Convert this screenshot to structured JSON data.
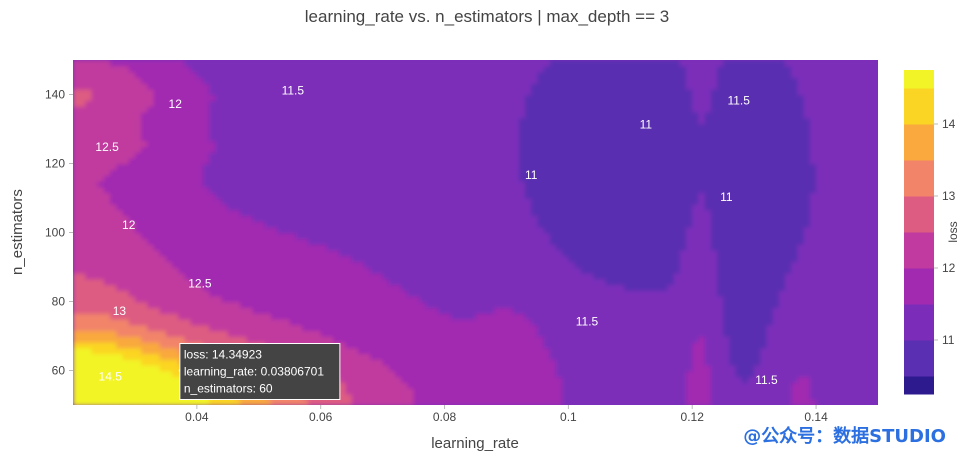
{
  "watermark": "@公众号：数据STUDIO",
  "chart_data": {
    "type": "contour",
    "title": "learning_rate vs. n_estimators | max_depth == 3",
    "xlabel": "learning_rate",
    "ylabel": "n_estimators",
    "colorbar_label": "loss",
    "xlim": [
      0.02,
      0.15
    ],
    "ylim": [
      50,
      150
    ],
    "x_ticks": [
      0.04,
      0.06,
      0.08,
      0.1,
      0.12,
      0.14
    ],
    "x_tick_labels": [
      "0.04",
      "0.06",
      "0.08",
      "0.1",
      "0.12",
      "0.14"
    ],
    "y_ticks": [
      60,
      80,
      100,
      120,
      140
    ],
    "y_tick_labels": [
      "60",
      "80",
      "100",
      "120",
      "140"
    ],
    "colorbar_range": [
      10.25,
      14.75
    ],
    "colorbar_ticks": [
      11,
      12,
      13,
      14
    ],
    "colorbar_tick_labels": [
      "11",
      "12",
      "13",
      "14"
    ],
    "contour_levels": [
      10.5,
      11,
      11.5,
      12,
      12.5,
      13,
      13.5,
      14,
      14.5
    ],
    "level_colors": [
      "#2d1a8e",
      "#5a2fb1",
      "#7b2db9",
      "#a12ab1",
      "#c13a9f",
      "#dd5c82",
      "#f2846a",
      "#f9a93e",
      "#fbd524",
      "#f2f428"
    ],
    "contour_labels": [
      {
        "text": "11.5",
        "x": 0.0555,
        "y": 141
      },
      {
        "text": "12",
        "x": 0.0365,
        "y": 137
      },
      {
        "text": "12.5",
        "x": 0.0255,
        "y": 124.5
      },
      {
        "text": "12",
        "x": 0.029,
        "y": 102
      },
      {
        "text": "12.5",
        "x": 0.0405,
        "y": 85
      },
      {
        "text": "13",
        "x": 0.0275,
        "y": 77
      },
      {
        "text": "14.5",
        "x": 0.026,
        "y": 58
      },
      {
        "text": "11",
        "x": 0.094,
        "y": 116.5
      },
      {
        "text": "11",
        "x": 0.1125,
        "y": 131
      },
      {
        "text": "11.5",
        "x": 0.1275,
        "y": 138
      },
      {
        "text": "11",
        "x": 0.1255,
        "y": 110
      },
      {
        "text": "11.5",
        "x": 0.103,
        "y": 74
      },
      {
        "text": "11.5",
        "x": 0.132,
        "y": 57
      }
    ],
    "hover": {
      "lines": [
        "loss: 14.34923",
        "learning_rate: 0.03806701",
        "n_estimators: 60"
      ],
      "x": 0.03806701,
      "y": 60
    }
  }
}
